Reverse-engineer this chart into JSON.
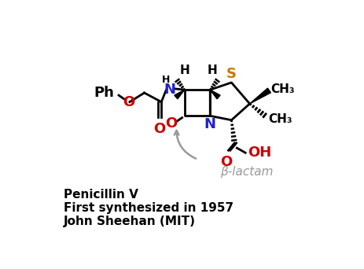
{
  "subtitle_lines": [
    "Penicillin V",
    "First synthesized in 1957",
    "John Sheehan (MIT)"
  ],
  "background_color": "#ffffff",
  "black": "#000000",
  "blue": "#2222cc",
  "red": "#cc0000",
  "orange": "#cc7700",
  "gray": "#999999",
  "beta_lactam_label": "β-lactam",
  "figsize": [
    4.64,
    3.42
  ],
  "dpi": 100
}
